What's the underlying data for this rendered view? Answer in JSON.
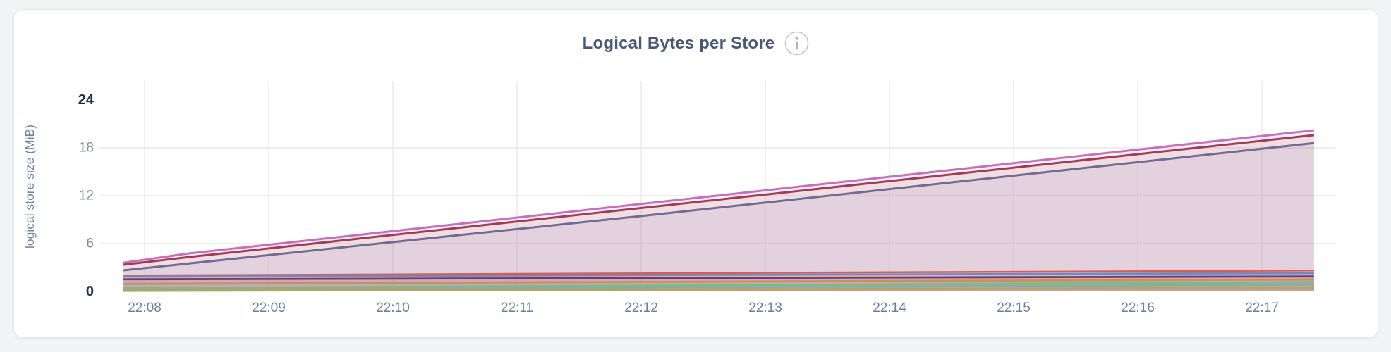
{
  "page": {
    "background": "#f3f4f6"
  },
  "card": {
    "background": "#ffffff",
    "border_color": "#e3e4e7"
  },
  "header": {
    "title": "Logical Bytes per Store",
    "title_color": "#485977",
    "info_icon": {
      "ring_color": "#c3c5c8",
      "glyph_color": "#a9adb2"
    }
  },
  "chart_data": {
    "type": "area",
    "title": "Logical Bytes per Store",
    "xlabel": "",
    "ylabel": "logical store size (MiB)",
    "y_unit": "MiB",
    "ylim": [
      0,
      24
    ],
    "xlim": [
      7.63,
      17.59
    ],
    "x_unit": "minutes after 22:00",
    "legend": "none",
    "grid": {
      "horizontal_at": [
        6,
        12,
        18
      ],
      "vertical_at": [
        8,
        9,
        10,
        11,
        12,
        13,
        14,
        15,
        16,
        17
      ]
    },
    "y_ticks": [
      {
        "value": 0,
        "label": "0",
        "emphasis": true
      },
      {
        "value": 6,
        "label": "6",
        "emphasis": false
      },
      {
        "value": 12,
        "label": "12",
        "emphasis": false
      },
      {
        "value": 18,
        "label": "18",
        "emphasis": false
      },
      {
        "value": 24,
        "label": "24",
        "emphasis": true
      }
    ],
    "x_ticks": [
      {
        "value": 8,
        "label": "22:08"
      },
      {
        "value": 9,
        "label": "22:09"
      },
      {
        "value": 10,
        "label": "22:10"
      },
      {
        "value": 11,
        "label": "22:11"
      },
      {
        "value": 12,
        "label": "22:12"
      },
      {
        "value": 13,
        "label": "22:13"
      },
      {
        "value": 14,
        "label": "22:14"
      },
      {
        "value": 15,
        "label": "22:15"
      },
      {
        "value": 16,
        "label": "22:16"
      },
      {
        "value": 17,
        "label": "22:17"
      }
    ],
    "axis_colors": {
      "y_tick": "#7b8aa2",
      "y_tick_emphasis": "#1c2a4a",
      "x_tick": "#697f9b",
      "ylabel": "#6f84a2",
      "grid_h": "#e8e9eb",
      "grid_v": "#ececee"
    },
    "series": [
      {
        "id": "store-a",
        "color": "#c76fbc",
        "line_width": 3,
        "fill_opacity": 0.1,
        "points": [
          [
            7.83,
            3.6
          ],
          [
            8.35,
            4.75
          ],
          [
            17.42,
            20.2
          ]
        ]
      },
      {
        "id": "store-b",
        "color": "#a23c52",
        "line_width": 3,
        "fill_opacity": 0.1,
        "points": [
          [
            7.83,
            3.35
          ],
          [
            8.35,
            4.3
          ],
          [
            17.42,
            19.6
          ]
        ]
      },
      {
        "id": "store-c",
        "color": "#716b90",
        "line_width": 3,
        "fill_opacity": 0.1,
        "points": [
          [
            7.83,
            2.65
          ],
          [
            12,
            9.45
          ],
          [
            17.42,
            18.6
          ]
        ]
      },
      {
        "id": "store-d",
        "color": "#dd5a4f",
        "line_width": 2.5,
        "fill_opacity": 0.12,
        "points": [
          [
            7.83,
            2.0
          ],
          [
            17.42,
            2.62
          ]
        ]
      },
      {
        "id": "store-e",
        "color": "#6b8bc3",
        "line_width": 2.8,
        "fill_opacity": 0.12,
        "points": [
          [
            7.83,
            1.85
          ],
          [
            17.42,
            2.3
          ]
        ]
      },
      {
        "id": "store-f",
        "color": "#84335f",
        "line_width": 2.8,
        "fill_opacity": 0.12,
        "points": [
          [
            7.83,
            1.52
          ],
          [
            17.42,
            1.88
          ]
        ]
      },
      {
        "id": "store-g",
        "color": "#bf9655",
        "line_width": 2.8,
        "fill_opacity": 0.12,
        "points": [
          [
            7.83,
            0.95
          ],
          [
            17.42,
            1.5
          ]
        ]
      },
      {
        "id": "store-h",
        "color": "#85b585",
        "line_width": 2.8,
        "fill_opacity": 0.12,
        "points": [
          [
            7.83,
            0.4
          ],
          [
            17.42,
            1.15
          ]
        ]
      },
      {
        "id": "store-i",
        "color": "#79b3a2",
        "line_width": 2.5,
        "fill_opacity": 0.12,
        "points": [
          [
            7.83,
            0.2
          ],
          [
            17.42,
            0.85
          ]
        ]
      },
      {
        "id": "store-j",
        "color": "#c49d58",
        "line_width": 2.8,
        "fill_opacity": 0.12,
        "points": [
          [
            7.83,
            0.07
          ],
          [
            17.42,
            0.45
          ]
        ]
      }
    ]
  }
}
